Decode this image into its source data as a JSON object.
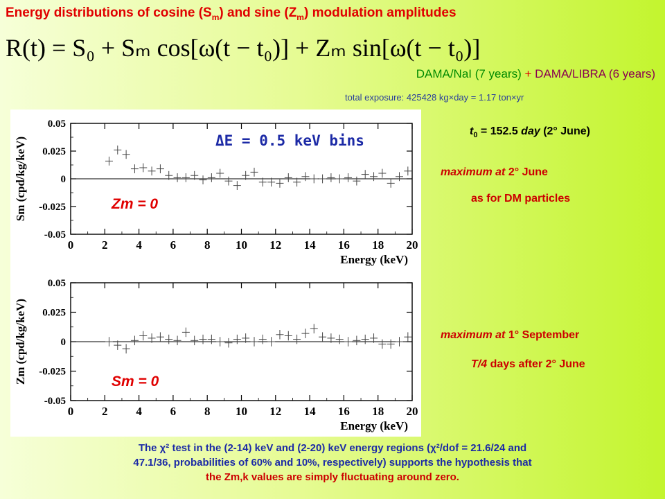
{
  "title": {
    "pre": "Energy distributions of cosine (",
    "s": "S",
    "s_sub": "m",
    "mid": ") and sine (",
    "z": "Z",
    "z_sub": "m",
    "post": ") modulation amplitudes"
  },
  "formula": {
    "text": "R(t) = S₀ + Sₘ cos[ω(t − t₀)] + Zₘ sin[ω(t − t₀)]"
  },
  "exposure_line": {
    "part1": "DAMA/NaI (7 years)",
    "plus": " + ",
    "part2": "DAMA/LIBRA (6 years)"
  },
  "total_exposure": "total exposure: 425428 kg×day = 1.17 ton×yr",
  "t0_note": {
    "t": "t",
    "sub": "0",
    "eq": " = 152.5 ",
    "day": "day",
    "rest": " (2° June)"
  },
  "sm_notes": {
    "line1_it": "maximum at",
    "line1_rest": " 2° June",
    "line2": "as for DM particles"
  },
  "zm_notes": {
    "line1_it": "maximum at",
    "line1_rest": " 1° September",
    "line2_it": "T/4",
    "line2_rest": " days after 2° June"
  },
  "footer": {
    "line1": "The χ² test in the (2-14) keV and (2-20) keV energy regions (χ²/dof = 21.6/24 and",
    "line2": "47.1/36, probabilities of 60% and 10%, respectively) supports the hypothesis that",
    "line3": "the Zm,k values are simply fluctuating around zero."
  },
  "chart_data": [
    {
      "type": "scatter",
      "annotation": "ΔE = 0.5 keV bins",
      "label": "Zm = 0",
      "xlabel": "Energy (keV)",
      "ylabel": "Sm (cpd/kg/keV)",
      "xlim": [
        0,
        20
      ],
      "ylim": [
        -0.05,
        0.05
      ],
      "xticks": [
        "0",
        "2",
        "4",
        "6",
        "8",
        "10",
        "12",
        "14",
        "16",
        "18",
        "20"
      ],
      "yticks": [
        "0.05",
        "0.025",
        "0",
        "-0.025",
        "-0.05"
      ],
      "x": [
        2.25,
        2.75,
        3.25,
        3.75,
        4.25,
        4.75,
        5.25,
        5.75,
        6.25,
        6.75,
        7.25,
        7.75,
        8.25,
        8.75,
        9.25,
        9.75,
        10.25,
        10.75,
        11.25,
        11.75,
        12.25,
        12.75,
        13.25,
        13.75,
        14.25,
        14.75,
        15.25,
        15.75,
        16.25,
        16.75,
        17.25,
        17.75,
        18.25,
        18.75,
        19.25,
        19.75
      ],
      "y": [
        0.016,
        0.026,
        0.022,
        0.009,
        0.01,
        0.007,
        0.009,
        0.003,
        0.001,
        0.001,
        0.003,
        -0.001,
        0.001,
        0.005,
        -0.002,
        -0.006,
        0.003,
        0.006,
        -0.003,
        -0.003,
        -0.004,
        0.001,
        -0.003,
        0.002,
        0.0,
        0.0,
        0.001,
        0.0,
        0.001,
        -0.002,
        0.004,
        0.002,
        0.005,
        -0.004,
        0.002,
        0.007
      ],
      "err": [
        0.004,
        0.004,
        0.004,
        0.004,
        0.004,
        0.004,
        0.004,
        0.004,
        0.004,
        0.004,
        0.004,
        0.004,
        0.004,
        0.004,
        0.004,
        0.004,
        0.004,
        0.004,
        0.004,
        0.004,
        0.004,
        0.004,
        0.004,
        0.004,
        0.004,
        0.004,
        0.004,
        0.004,
        0.004,
        0.004,
        0.004,
        0.004,
        0.004,
        0.004,
        0.004,
        0.004
      ]
    },
    {
      "type": "scatter",
      "label": "Sm = 0",
      "xlabel": "Energy (keV)",
      "ylabel": "Zm (cpd/kg/keV)",
      "xlim": [
        0,
        20
      ],
      "ylim": [
        -0.05,
        0.05
      ],
      "xticks": [
        "0",
        "2",
        "4",
        "6",
        "8",
        "10",
        "12",
        "14",
        "16",
        "18",
        "20"
      ],
      "yticks": [
        "0.05",
        "0.025",
        "0",
        "-0.025",
        "-0.05"
      ],
      "x": [
        2.25,
        2.75,
        3.25,
        3.75,
        4.25,
        4.75,
        5.25,
        5.75,
        6.25,
        6.75,
        7.25,
        7.75,
        8.25,
        8.75,
        9.25,
        9.75,
        10.25,
        10.75,
        11.25,
        11.75,
        12.25,
        12.75,
        13.25,
        13.75,
        14.25,
        14.75,
        15.25,
        15.75,
        16.25,
        16.75,
        17.25,
        17.75,
        18.25,
        18.75,
        19.25,
        19.75
      ],
      "y": [
        0.0,
        -0.003,
        -0.006,
        0.001,
        0.005,
        0.003,
        0.004,
        0.002,
        0.001,
        0.008,
        0.001,
        0.002,
        0.002,
        0.0,
        -0.001,
        0.002,
        0.003,
        0.0,
        0.002,
        0.0,
        0.006,
        0.005,
        0.002,
        0.007,
        0.011,
        0.004,
        0.003,
        0.002,
        0.0,
        0.001,
        0.002,
        0.003,
        -0.002,
        -0.002,
        0.0,
        0.004
      ],
      "err": [
        0.004,
        0.004,
        0.004,
        0.004,
        0.004,
        0.004,
        0.004,
        0.004,
        0.004,
        0.004,
        0.004,
        0.004,
        0.004,
        0.004,
        0.004,
        0.004,
        0.004,
        0.004,
        0.004,
        0.004,
        0.004,
        0.004,
        0.004,
        0.004,
        0.004,
        0.004,
        0.004,
        0.004,
        0.004,
        0.004,
        0.004,
        0.004,
        0.004,
        0.004,
        0.004,
        0.004
      ]
    }
  ]
}
